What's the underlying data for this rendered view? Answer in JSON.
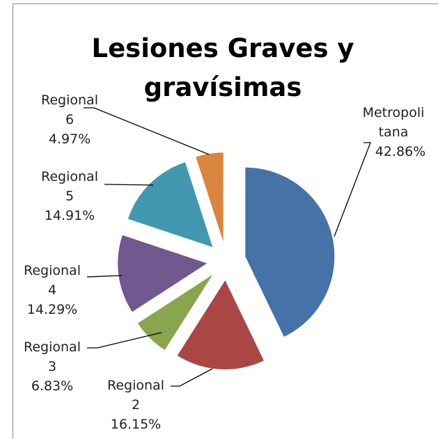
{
  "chart_data": {
    "type": "pie",
    "title": "Lesiones Graves y gravísimas",
    "categories": [
      "Metropolitana",
      "Regional 2",
      "Regional 3",
      "Regional 4",
      "Regional 5",
      "Regional 6"
    ],
    "values": [
      42.86,
      16.15,
      6.83,
      14.29,
      14.91,
      4.97
    ],
    "value_labels": [
      "42.86%",
      "16.15%",
      "6.83%",
      "14.29%",
      "14.91%",
      "4.97%"
    ],
    "colors": [
      "#4572a7",
      "#aa4643",
      "#89a54e",
      "#71588f",
      "#4198af",
      "#db843d"
    ],
    "exploded": true
  }
}
